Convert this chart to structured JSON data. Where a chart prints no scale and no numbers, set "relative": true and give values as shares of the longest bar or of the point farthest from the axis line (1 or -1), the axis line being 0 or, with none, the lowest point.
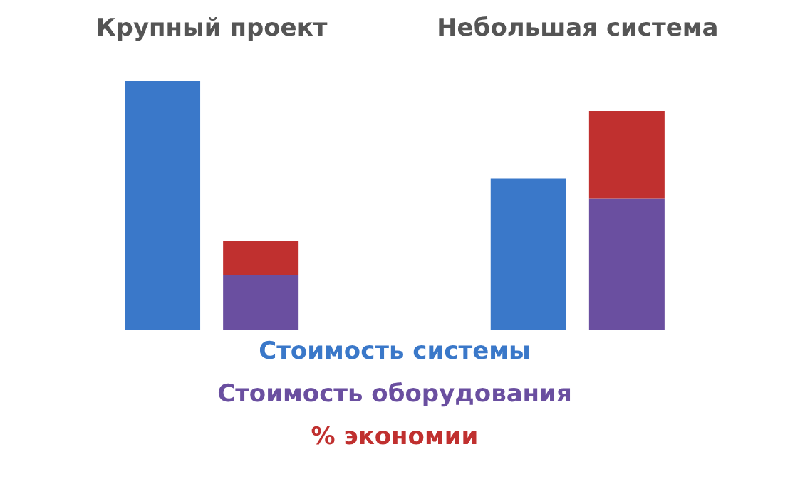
{
  "chart_data": {
    "type": "bar",
    "relative": true,
    "categories": [
      null,
      null,
      null,
      null
    ],
    "annotations": [
      "Крупный проект",
      "Небольшая система"
    ],
    "series": [
      {
        "name": "Стоимость системы",
        "color": "#3a78c9",
        "values": [
          1,
          null,
          0.61,
          null
        ]
      },
      {
        "name": "Стоимость оборудования",
        "color": "#6a4fa0",
        "values": [
          null,
          0.22,
          null,
          0.53
        ]
      },
      {
        "name": "% экономии",
        "color": "#c0302f",
        "values": [
          null,
          0.14,
          null,
          0.35
        ]
      }
    ],
    "stacked": true,
    "legend": "bottom"
  }
}
